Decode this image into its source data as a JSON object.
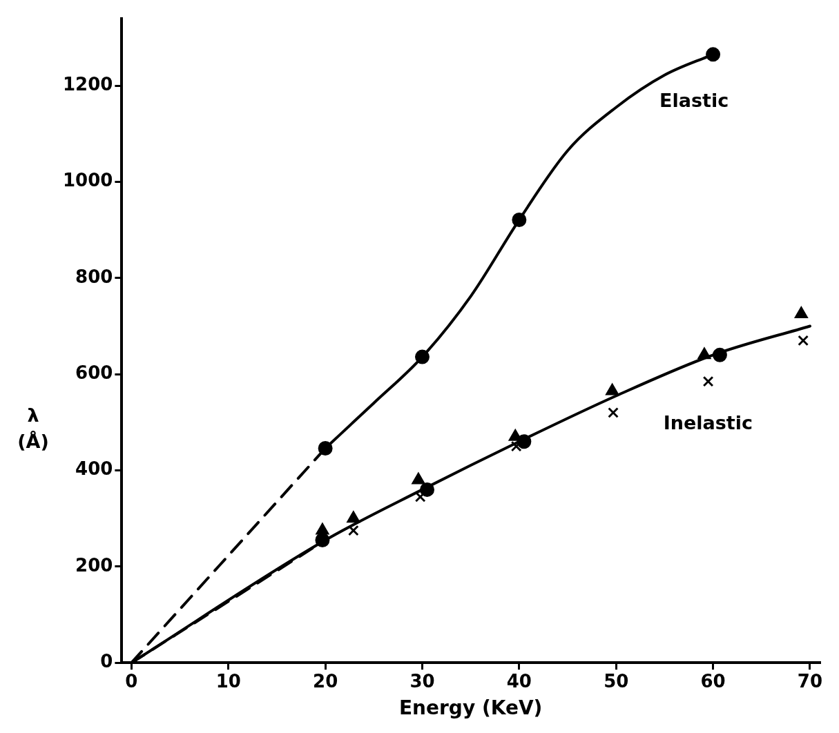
{
  "chart_data": {
    "type": "scatter",
    "xlabel": "Energy (KeV)",
    "ylabel": "λ (Å)",
    "xlim": [
      -1,
      71
    ],
    "xticks": [
      0,
      10,
      20,
      30,
      40,
      50,
      60,
      70
    ],
    "ylim": [
      0,
      1340
    ],
    "yticks": [
      0,
      200,
      400,
      600,
      800,
      1000,
      1200
    ],
    "grid": false,
    "legend": false,
    "annotations": [
      "Elastic",
      "Inelastic"
    ],
    "series": [
      {
        "type": "scatter",
        "color": "#000000",
        "marker": "circle",
        "x": [
          20,
          30,
          40,
          60
        ],
        "values": [
          446,
          636,
          921,
          1265
        ]
      },
      {
        "type": "line",
        "color": "#000000",
        "marker": "none",
        "line_style": "solid",
        "x": [
          20,
          25,
          30,
          35,
          40,
          45,
          50,
          55,
          60
        ],
        "values": [
          446,
          540,
          636,
          762,
          921,
          1065,
          1155,
          1222,
          1265
        ]
      },
      {
        "type": "line",
        "color": "#000000",
        "marker": "none",
        "line_style": "dashed",
        "x": [
          0,
          20
        ],
        "values": [
          0,
          446
        ]
      },
      {
        "type": "scatter",
        "color": "#000000",
        "marker": "circle",
        "x": [
          19.7,
          30.5,
          40.5,
          60.7
        ],
        "values": [
          255,
          360,
          460,
          640
        ]
      },
      {
        "type": "scatter",
        "color": "#000000",
        "marker": "triangle",
        "x": [
          19.7,
          22.9,
          29.6,
          39.6,
          49.6,
          59.1,
          69.1
        ],
        "values": [
          275,
          300,
          380,
          470,
          565,
          640,
          725
        ]
      },
      {
        "type": "scatter",
        "color": "#000000",
        "marker": "cross",
        "x": [
          22.9,
          29.8,
          39.7,
          49.7,
          59.5,
          69.3
        ],
        "values": [
          275,
          345,
          450,
          520,
          585,
          670
        ]
      },
      {
        "type": "line",
        "color": "#000000",
        "marker": "none",
        "line_style": "solid",
        "x": [
          0,
          20,
          30,
          40,
          50,
          60,
          70
        ],
        "values": [
          0,
          255,
          360,
          460,
          555,
          640,
          700
        ]
      },
      {
        "type": "line",
        "color": "#000000",
        "marker": "none",
        "line_style": "dashed",
        "x": [
          0,
          20
        ],
        "values": [
          0,
          255
        ]
      }
    ]
  }
}
